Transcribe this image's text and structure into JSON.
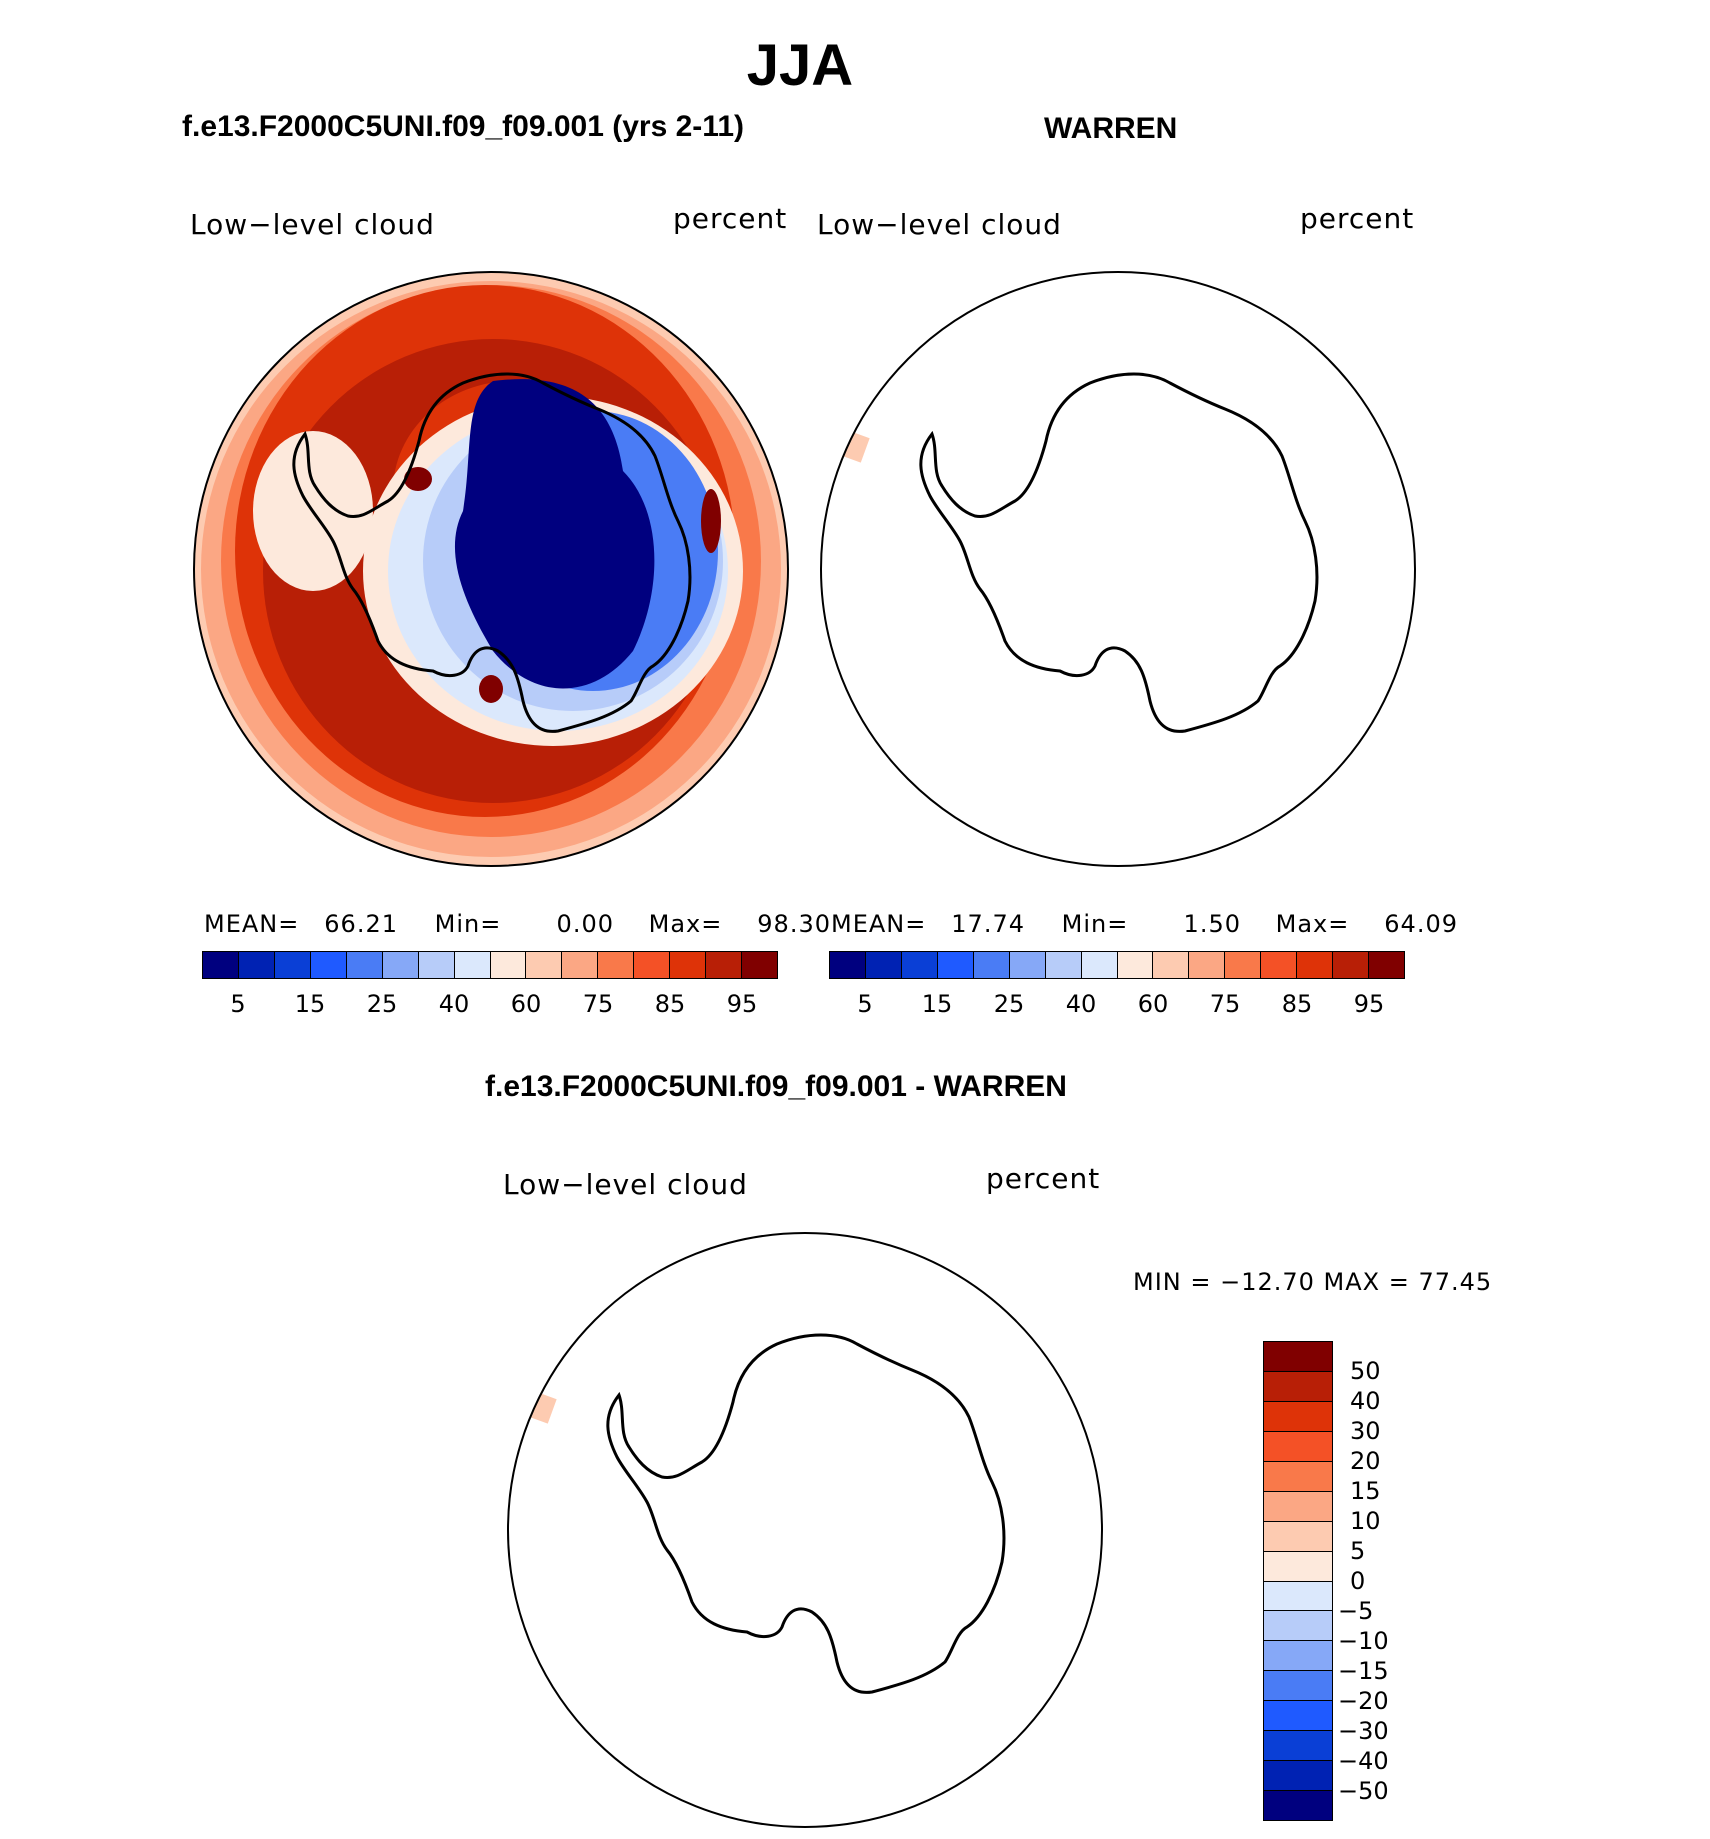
{
  "header": {
    "season": "JJA",
    "panel1_title": "f.e13.F2000C5UNI.f09_f09.001 (yrs 2-11)",
    "panel2_title": "WARREN",
    "diff_title": "f.e13.F2000C5UNI.f09_f09.001 - WARREN"
  },
  "panels": [
    {
      "variable": "Low−level cloud",
      "units": "percent",
      "mean_label": "MEAN=",
      "mean": "66.21",
      "min_label": "Min=",
      "min": "0.00",
      "max_label": "Max=",
      "max": "98.30"
    },
    {
      "variable": "Low−level cloud",
      "units": "percent",
      "mean_label": "MEAN=",
      "mean": "17.74",
      "min_label": "Min=",
      "min": "1.50",
      "max_label": "Max=",
      "max": "64.09"
    }
  ],
  "diff": {
    "variable": "Low−level cloud",
    "units": "percent",
    "range_text": "MIN = −12.70 MAX =   77.45"
  },
  "colorbar_main": {
    "colors": [
      "#00007f",
      "#0022b3",
      "#0a3fd6",
      "#1f5aff",
      "#4a7cf5",
      "#86a8f7",
      "#b7ccf9",
      "#dbe8fc",
      "#fde9dc",
      "#fdcbb1",
      "#fba784",
      "#f9794a",
      "#f45126",
      "#de3308",
      "#b81f06",
      "#800000"
    ],
    "tick_labels": [
      "5",
      "15",
      "25",
      "40",
      "60",
      "75",
      "85",
      "95"
    ]
  },
  "colorbar_diff": {
    "colors": [
      "#800000",
      "#b81f06",
      "#de3308",
      "#f45126",
      "#f9794a",
      "#fba784",
      "#fdcbb1",
      "#fde9dc",
      "#dbe8fc",
      "#b7ccf9",
      "#86a8f7",
      "#4a7cf5",
      "#1f5aff",
      "#0a3fd6",
      "#0022b3",
      "#00007f"
    ],
    "tick_labels": [
      "50",
      "40",
      "30",
      "20",
      "15",
      "10",
      "5",
      "0",
      "−5",
      "−10",
      "−15",
      "−20",
      "−30",
      "−40",
      "−50"
    ]
  }
}
